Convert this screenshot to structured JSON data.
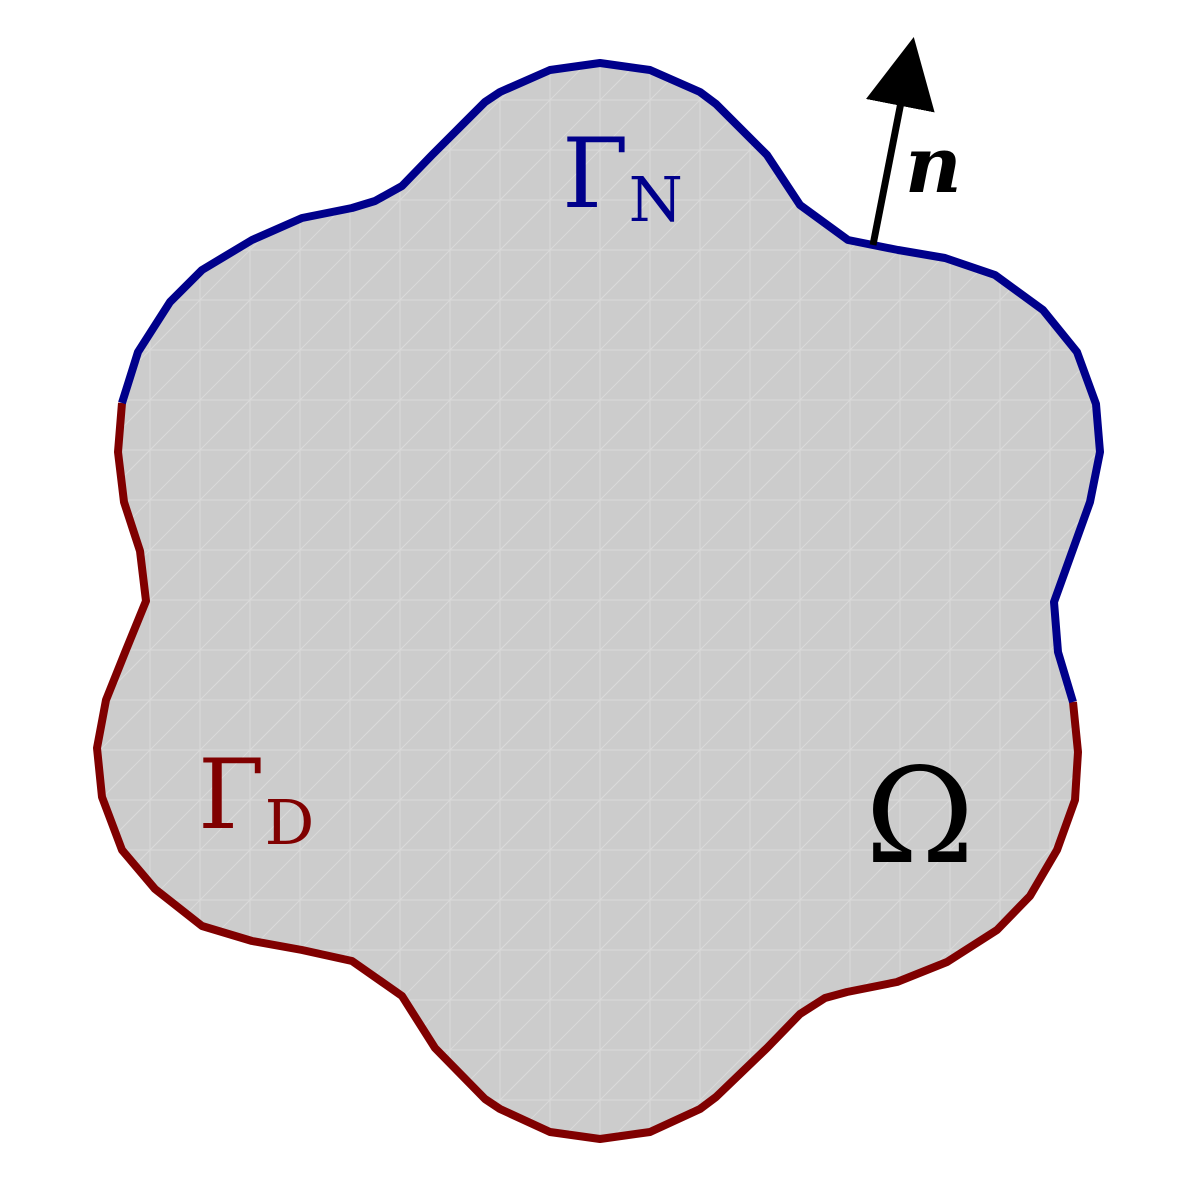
{
  "labels": {
    "neumann": {
      "main": "Γ",
      "sub": "N"
    },
    "dirichlet": {
      "main": "Γ",
      "sub": "D"
    },
    "domain": "Ω",
    "normal": "n"
  },
  "colors": {
    "domain_fill": "#cccccc",
    "mesh_line": "#dadada",
    "neumann": "#00008b",
    "dirichlet": "#800000",
    "normal_arrow": "#000000",
    "label_text": "#000000",
    "background": "#ffffff"
  }
}
